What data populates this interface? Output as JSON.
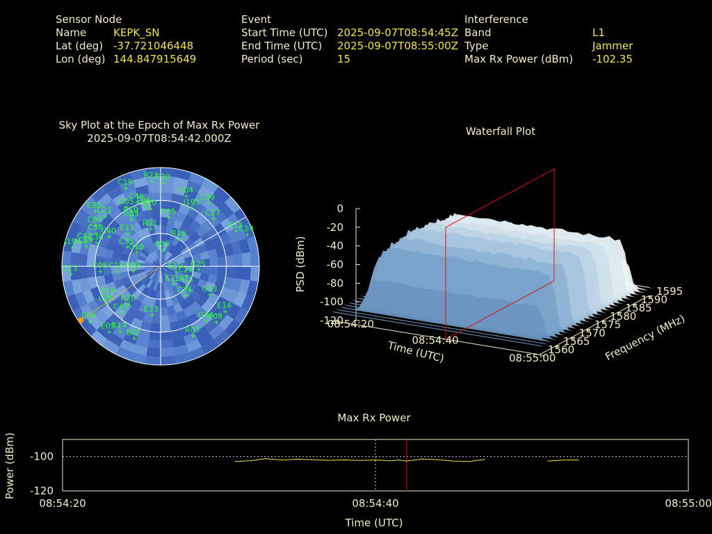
{
  "header": {
    "sensor": {
      "heading": "Sensor Node",
      "rows": [
        {
          "label": "Name",
          "value": "KEPK_SN"
        },
        {
          "label": "Lat (deg)",
          "value": "-37.721046448"
        },
        {
          "label": "Lon (deg)",
          "value": "144.847915649"
        }
      ]
    },
    "event": {
      "heading": "Event",
      "rows": [
        {
          "label": "Start Time (UTC)",
          "value": "2025-09-07T08:54:45Z"
        },
        {
          "label": "End Time (UTC)",
          "value": "2025-09-07T08:55:00Z"
        },
        {
          "label": "Period (sec)",
          "value": "15"
        }
      ]
    },
    "interference": {
      "heading": "Interference",
      "rows": [
        {
          "label": "Band",
          "value": "L1"
        },
        {
          "label": "Type",
          "value": "Jammer"
        },
        {
          "label": "Max Rx Power (dBm)",
          "value": "-102.35"
        }
      ]
    }
  },
  "sky_plot": {
    "title_line1": "Sky Plot at the Epoch of Max Rx Power",
    "title_line2": "2025-09-07T08:54:42.000Z",
    "colors": {
      "sat": "#2bff2b",
      "interference": "#ff9d00",
      "grid": "#ffffff"
    }
  },
  "chart_data": [
    {
      "type": "scatter",
      "title": "Sky Plot at the Epoch of Max Rx Power",
      "subtitle": "2025-09-07T08:54:42.000Z",
      "projection": "polar (azimuth deg, elevation deg)",
      "satellites": [
        {
          "name": "C19",
          "az": 336,
          "el": 12
        },
        {
          "name": "R23",
          "az": 354,
          "el": 12
        },
        {
          "name": "C30",
          "az": 2,
          "el": 14
        },
        {
          "name": "C46",
          "az": 340,
          "el": 28
        },
        {
          "name": "E06",
          "az": 345,
          "el": 34
        },
        {
          "name": "R10",
          "az": 330,
          "el": 37
        },
        {
          "name": "E20",
          "az": 350,
          "el": 37
        },
        {
          "name": "G04",
          "az": 20,
          "el": 22
        },
        {
          "name": "J195",
          "az": 28,
          "el": 30
        },
        {
          "name": "C39",
          "az": 37,
          "el": 18
        },
        {
          "name": "E36",
          "az": 310,
          "el": 12
        },
        {
          "name": "C21",
          "az": 312,
          "el": 22
        },
        {
          "name": "G05",
          "az": 330,
          "el": 28
        },
        {
          "name": "C60",
          "az": 302,
          "el": 20
        },
        {
          "name": "C38",
          "az": 297,
          "el": 24
        },
        {
          "name": "G03",
          "az": 328,
          "el": 40
        },
        {
          "name": "R05",
          "az": 10,
          "el": 45
        },
        {
          "name": "C27",
          "az": 48,
          "el": 25
        },
        {
          "name": "R12",
          "az": 65,
          "el": 14
        },
        {
          "name": "C24",
          "az": 70,
          "el": 6
        },
        {
          "name": "C59",
          "az": 285,
          "el": 20
        },
        {
          "name": "C36",
          "az": 290,
          "el": 28
        },
        {
          "name": "J194",
          "az": 282,
          "el": 8
        },
        {
          "name": "C42",
          "az": 288,
          "el": 18
        },
        {
          "name": "C40",
          "az": 300,
          "el": 36
        },
        {
          "name": "E11",
          "az": 315,
          "el": 48
        },
        {
          "name": "C35",
          "az": 300,
          "el": 55
        },
        {
          "name": "R01",
          "az": 345,
          "el": 55
        },
        {
          "name": "R16",
          "az": 35,
          "el": 60
        },
        {
          "name": "G18",
          "az": 300,
          "el": 65
        },
        {
          "name": "C13",
          "az": 265,
          "el": 8
        },
        {
          "name": "C08",
          "az": 265,
          "el": 35
        },
        {
          "name": "C16",
          "az": 263,
          "el": 50
        },
        {
          "name": "E03",
          "az": 10,
          "el": 75
        },
        {
          "name": "E10",
          "az": 110,
          "el": 75
        },
        {
          "name": "C29",
          "az": 110,
          "el": 65
        },
        {
          "name": "G08",
          "az": 260,
          "el": 65
        },
        {
          "name": "R19",
          "az": 240,
          "el": 35
        },
        {
          "name": "E31",
          "az": 145,
          "el": 70
        },
        {
          "name": "C34",
          "az": 140,
          "el": 55
        },
        {
          "name": "R25",
          "az": 95,
          "el": 55
        },
        {
          "name": "R20",
          "az": 220,
          "el": 45
        },
        {
          "name": "C45",
          "az": 220,
          "el": 35
        },
        {
          "name": "C25",
          "az": 235,
          "el": 30
        },
        {
          "name": "E33",
          "az": 190,
          "el": 45
        },
        {
          "name": "G13",
          "az": 120,
          "el": 38
        },
        {
          "name": "R11",
          "az": 125,
          "el": 60
        },
        {
          "name": "E08",
          "az": 135,
          "el": 18
        },
        {
          "name": "E14",
          "az": 125,
          "el": 18
        },
        {
          "name": "G44",
          "az": 140,
          "el": 25
        },
        {
          "name": "R03",
          "az": 155,
          "el": 20
        },
        {
          "name": "E07",
          "az": 200,
          "el": 20
        },
        {
          "name": "E04",
          "az": 232,
          "el": 8
        },
        {
          "name": "R14",
          "az": 212,
          "el": 20
        },
        {
          "name": "E05",
          "az": 218,
          "el": 14
        }
      ],
      "interference_direction": {
        "az": 236,
        "el": 2
      }
    },
    {
      "type": "area",
      "title": "Waterfall Plot",
      "axes": {
        "time": {
          "label": "Time (UTC)",
          "ticks": [
            "08:54:20",
            "08:54:40",
            "08:55:00"
          ]
        },
        "frequency": {
          "label": "Frequency (MHz)",
          "ticks": [
            1560,
            1565,
            1570,
            1575,
            1580,
            1585,
            1590,
            1595
          ],
          "range": [
            1560,
            1595
          ]
        },
        "psd": {
          "label": "PSD (dBm)",
          "ticks": [
            0,
            -20,
            -40,
            -60,
            -80,
            -100,
            -120
          ],
          "range": [
            -120,
            0
          ]
        }
      },
      "surface_psd_peak_dbm": -45,
      "surface_psd_floor_dbm": -120,
      "marker_time": "08:54:42"
    },
    {
      "type": "line",
      "title": "Max Rx Power",
      "xlabel": "Time (UTC)",
      "ylabel": "Power (dBm)",
      "xticks": [
        "08:54:20",
        "08:54:40",
        "08:55:00"
      ],
      "yticks": [
        -100,
        -120
      ],
      "ylim": [
        -120,
        -90
      ],
      "x_seconds_from_start_range": [
        0,
        40
      ],
      "segments": [
        [
          [
            11,
            -102.9
          ],
          [
            12,
            -102.4
          ],
          [
            13,
            -101.2
          ],
          [
            14,
            -102.0
          ],
          [
            15,
            -101.5
          ],
          [
            16,
            -101.8
          ],
          [
            17,
            -102.2
          ],
          [
            18,
            -101.9
          ],
          [
            19,
            -102.3
          ],
          [
            20,
            -102.0
          ],
          [
            21,
            -102.5
          ],
          [
            21.5,
            -102.0
          ],
          [
            22,
            -102.6
          ],
          [
            23,
            -101.4
          ],
          [
            24,
            -101.8
          ],
          [
            25,
            -102.6
          ],
          [
            26,
            -102.9
          ],
          [
            27,
            -101.6
          ]
        ],
        [
          [
            31,
            -102.6
          ],
          [
            32,
            -102.1
          ],
          [
            33,
            -101.9
          ]
        ]
      ],
      "marker_x": 22.0,
      "ref_line_y": -100
    }
  ]
}
